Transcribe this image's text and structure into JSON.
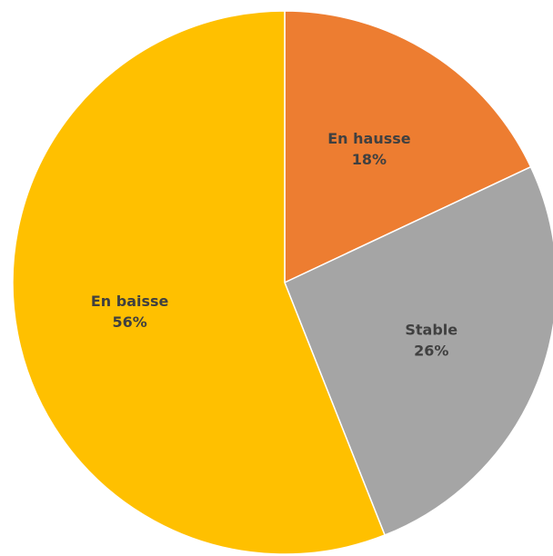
{
  "chart_data": {
    "type": "pie",
    "categories": [
      "En hausse",
      "Stable",
      "En baisse"
    ],
    "values": [
      18,
      26,
      56
    ],
    "value_labels": [
      "18%",
      "26%",
      "56%"
    ],
    "colors": [
      "#ED7D31",
      "#A5A5A5",
      "#FFC000"
    ]
  }
}
